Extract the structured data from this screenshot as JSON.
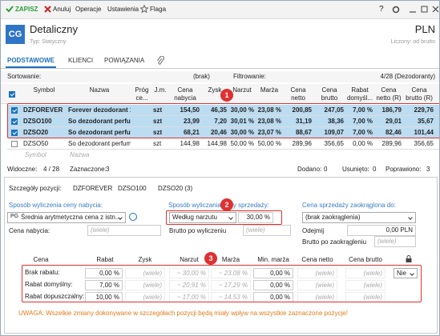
{
  "toolbar": {
    "save": "ZAPISZ",
    "cancel": "Anuluj",
    "operations": "Operacje",
    "settings": "Ustawienia",
    "flag": "Flaga",
    "help": "?"
  },
  "header": {
    "icon": "CG",
    "title": "Detaliczny",
    "subtitle": "Typ: Statyczny",
    "currency": "PLN",
    "calc": "Liczony: od brutto"
  },
  "tabs": [
    "PODSTAWOWE",
    "KLIENCI",
    "POWIĄZANIA"
  ],
  "sortbar": {
    "sort_label": "Sortowanie:",
    "sort_value": "(brak)",
    "filter_label": "Filtrowanie:",
    "filter_value": "4/28 (Dezodoranty)"
  },
  "table": {
    "columns": [
      "Symbol",
      "Nazwa",
      "Próg ce...",
      "J.m.",
      "Cena nabycia",
      "Zysk",
      "Narzut",
      "Marża",
      "Cena netto",
      "Cena brutto",
      "Rabat domyśl...",
      "Cena netto (R)",
      "Cena brutto (R)"
    ],
    "rows": [
      {
        "checked": true,
        "cells": [
          "DZFOREVER",
          "Forever dezodorant 1...",
          "",
          "szt",
          "154,50",
          "46,35",
          "30,00 %",
          "23,08 %",
          "200,85",
          "247,05",
          "7,00 %",
          "186,79",
          "229,76"
        ]
      },
      {
        "checked": true,
        "cells": [
          "DZSO100",
          "So dezodorant perfu...",
          "",
          "szt",
          "23,99",
          "7,20",
          "30,01 %",
          "23,08 %",
          "31,19",
          "38,36",
          "7,00 %",
          "29,01",
          "35,67"
        ]
      },
      {
        "checked": true,
        "cells": [
          "DZSO20",
          "So dezodorant perfu...",
          "",
          "szt",
          "68,21",
          "20,46",
          "30,00 %",
          "23,07 %",
          "88,67",
          "109,07",
          "7,00 %",
          "82,46",
          "101,44"
        ]
      },
      {
        "checked": false,
        "cells": [
          "DZSO50",
          "So dezodorant perfum...",
          "",
          "szt",
          "144,98",
          "144,98",
          "50,00 %",
          "50,00 %",
          "289,96",
          "356,65",
          "0,00 %",
          "289,96",
          "356,65"
        ]
      }
    ],
    "new_row": [
      "Symbol",
      "Nazwa"
    ]
  },
  "callouts": [
    "1",
    "2",
    "3"
  ],
  "status": {
    "visible_label": "Widoczne:",
    "visible": "4 / 28",
    "selected_label": "Zaznaczone:",
    "selected": "3",
    "added_label": "Dodano:",
    "added": "0",
    "removed_label": "Usunięto:",
    "removed": "0",
    "fixed_label": "Poprawiono:",
    "fixed": "3"
  },
  "details": {
    "title": "Szczegóły pozycji:",
    "items": [
      "DZFOREVER",
      "DZSO100",
      "DZSO20 (3)"
    ],
    "purchase": {
      "label": "Sposób wyliczenia ceny nabycia:",
      "prefix": "PG",
      "method": "Średnia arytmetyczna cena z istn...",
      "price_label": "Cena nabycia:",
      "price": "(wiele)"
    },
    "sale": {
      "label": "Sposób wyliczania ceny sprzedaży:",
      "method": "Według narzutu",
      "value": "30,00 %",
      "gross_label": "Brutto po wyliczeniu",
      "gross": "(wiele)"
    },
    "rounding": {
      "label": "Cena sprzedaży zaokrąglona do:",
      "method": "(brak zaokrąglenia)",
      "subtract_label": "Odejmij",
      "subtract": "0,00 PLN",
      "gross_label": "Brutto po zaokrągleniu",
      "gross": "(wiele)"
    },
    "grid": {
      "columns": [
        "Cena",
        "Rabat",
        "Zysk",
        "Narzut",
        "Marża",
        "Min. marża",
        "Cena netto",
        "Cena brutto"
      ],
      "rows": [
        {
          "label": "Brak rabatu:",
          "cells": [
            "0,00 %",
            "(wiele)",
            "~ 30,00 %",
            "~ 23,08 %",
            "0,00 %",
            "(wiele)",
            "(wiele)"
          ],
          "lock": "Nie"
        },
        {
          "label": "Rabat domyślny:",
          "cells": [
            "7,00 %",
            "(wiele)",
            "~ 20,91 %",
            "~ 17,29 %",
            "0,00 %",
            "(wiele)",
            "(wiele)"
          ]
        },
        {
          "label": "Rabat dopuszczalny:",
          "cells": [
            "10,00 %",
            "(wiele)",
            "~ 17,00 %",
            "~ 14,53 %",
            "0,00 %",
            "(wiele)",
            "(wiele)"
          ]
        }
      ]
    },
    "warning": "UWAGA: Wszelkie zmiany dokonywane w szczegółach pozycji będą miały wpływ na wszystkie zaznaczone pozycje!"
  }
}
